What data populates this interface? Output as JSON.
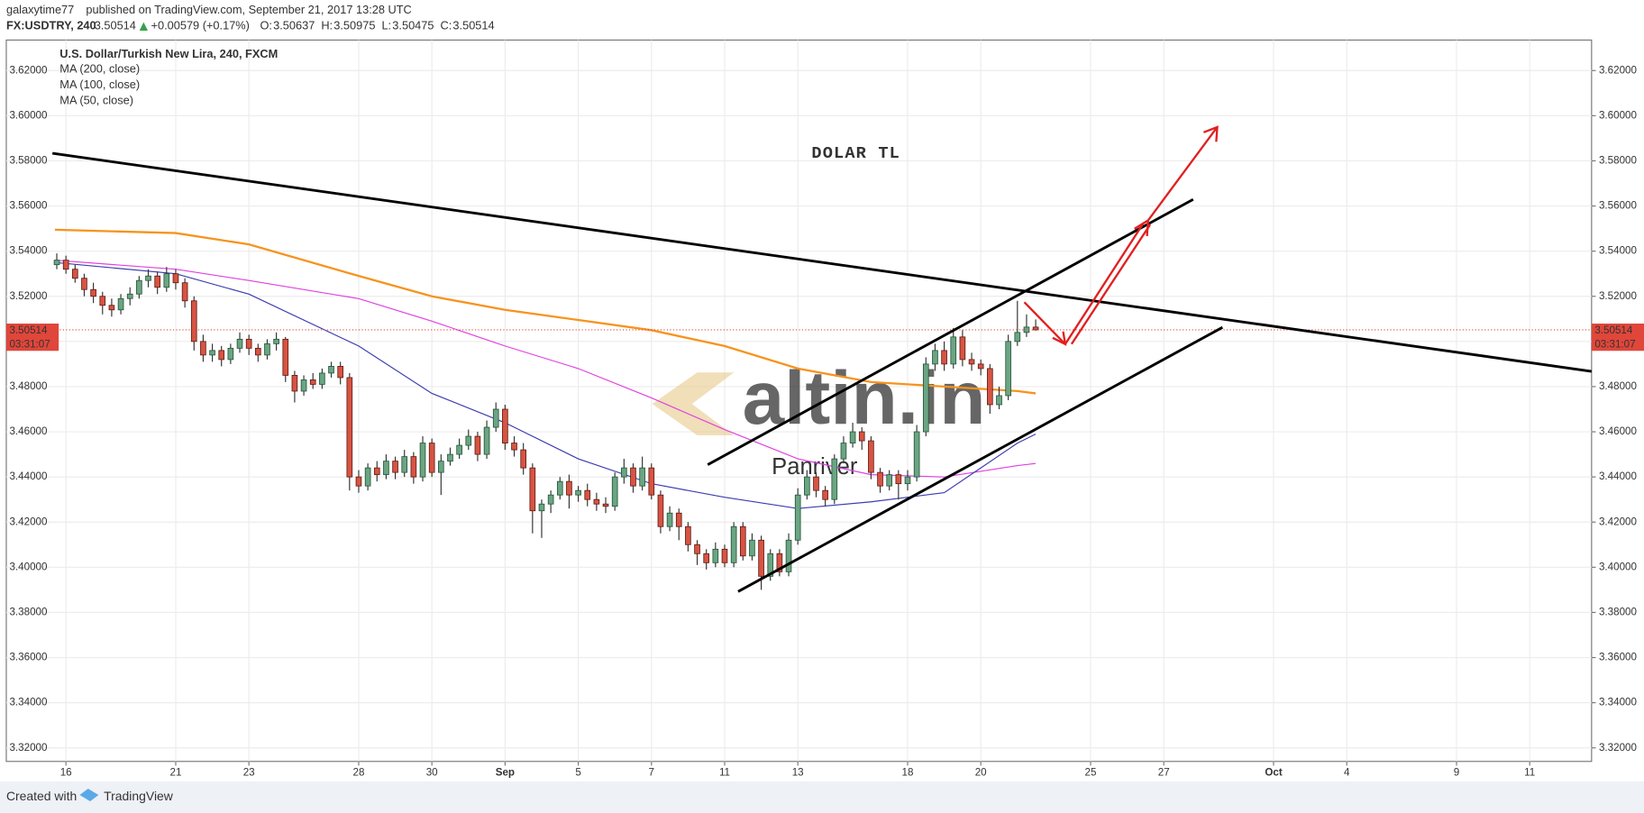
{
  "header": {
    "author": "galaxytime77",
    "published": "published on TradingView.com, September 21, 2017 13:28 UTC",
    "symbol": "FX:USDTRY, 240",
    "price": "3.50514",
    "change": "+0.00579 (+0.17%)",
    "quote": [
      {
        "label": "O:",
        "value": "3.50637"
      },
      {
        "label": "H:",
        "value": "3.50975"
      },
      {
        "label": "L:",
        "value": "3.50475"
      },
      {
        "label": "C:",
        "value": "3.50514"
      }
    ]
  },
  "chart_data": {
    "type": "candlestick",
    "title": "U.S. Dollar/Turkish New Lira, 240, FXCM",
    "annotation": "DOLAR TL",
    "watermark": "altin.in",
    "watermark2": "Panriver",
    "xlim": [
      -1.63,
      41.69
    ],
    "xticks": [
      {
        "value": 0,
        "label": "16"
      },
      {
        "value": 3,
        "label": "21"
      },
      {
        "value": 5,
        "label": "23"
      },
      {
        "value": 8,
        "label": "28"
      },
      {
        "value": 10,
        "label": "30"
      },
      {
        "value": 12,
        "label": "Sep"
      },
      {
        "value": 14,
        "label": "5"
      },
      {
        "value": 16,
        "label": "7"
      },
      {
        "value": 18,
        "label": "11"
      },
      {
        "value": 20,
        "label": "13"
      },
      {
        "value": 23,
        "label": "18"
      },
      {
        "value": 25,
        "label": "20"
      },
      {
        "value": 28,
        "label": "25"
      },
      {
        "value": 30,
        "label": "27"
      },
      {
        "value": 33,
        "label": "Oct"
      },
      {
        "value": 35,
        "label": "4"
      },
      {
        "value": 38,
        "label": "9"
      },
      {
        "value": 40,
        "label": "11"
      }
    ],
    "ylim": [
      3.314,
      3.6335
    ],
    "yticks": [
      {
        "value": 3.32,
        "label": "3.32000"
      },
      {
        "value": 3.34,
        "label": "3.34000"
      },
      {
        "value": 3.36,
        "label": "3.36000"
      },
      {
        "value": 3.38,
        "label": "3.38000"
      },
      {
        "value": 3.4,
        "label": "3.40000"
      },
      {
        "value": 3.42,
        "label": "3.42000"
      },
      {
        "value": 3.44,
        "label": "3.44000"
      },
      {
        "value": 3.46,
        "label": "3.46000"
      },
      {
        "value": 3.48,
        "label": "3.48000"
      },
      {
        "value": 3.5,
        "label": "3.50000"
      },
      {
        "value": 3.52,
        "label": "3.52000"
      },
      {
        "value": 3.54,
        "label": "3.54000"
      },
      {
        "value": 3.56,
        "label": "3.56000"
      },
      {
        "value": 3.58,
        "label": "3.58000"
      },
      {
        "value": 3.6,
        "label": "3.60000"
      },
      {
        "value": 3.62,
        "label": "3.62000"
      }
    ],
    "grid": true,
    "last_price": 3.50514,
    "countdown": "03:31:07",
    "up_color": "#6ba583",
    "down_color": "#d75442",
    "last_color": "#e0463a",
    "candles": {
      "x": [
        -0.25,
        0,
        0.25,
        0.5,
        0.75,
        1,
        1.25,
        1.5,
        1.75,
        2,
        2.25,
        2.5,
        2.75,
        3,
        3.25,
        3.5,
        3.75,
        4,
        4.25,
        4.5,
        4.75,
        5,
        5.25,
        5.5,
        5.75,
        6,
        6.25,
        6.5,
        6.75,
        7,
        7.25,
        7.5,
        7.75,
        8,
        8.25,
        8.5,
        8.75,
        9,
        9.25,
        9.5,
        9.75,
        10,
        10.25,
        10.5,
        10.75,
        11,
        11.25,
        11.5,
        11.75,
        12,
        12.25,
        12.5,
        12.75,
        13,
        13.25,
        13.5,
        13.75,
        14,
        14.25,
        14.5,
        14.75,
        15,
        15.25,
        15.5,
        15.75,
        16,
        16.25,
        16.5,
        16.75,
        17,
        17.25,
        17.5,
        17.75,
        18,
        18.25,
        18.5,
        18.75,
        19,
        19.25,
        19.5,
        19.75,
        20,
        20.25,
        20.5,
        20.75,
        21,
        21.25,
        21.5,
        21.75,
        22,
        22.25,
        22.5,
        22.75,
        23,
        23.25,
        23.5,
        23.75,
        24,
        24.25,
        24.5,
        24.75,
        25,
        25.25,
        25.5,
        25.75,
        26,
        26.25,
        26.5
      ],
      "ohlc": [
        [
          3.534,
          3.539,
          3.532,
          3.536
        ],
        [
          3.536,
          3.538,
          3.53,
          3.532
        ],
        [
          3.532,
          3.534,
          3.526,
          3.528
        ],
        [
          3.528,
          3.53,
          3.52,
          3.523
        ],
        [
          3.523,
          3.526,
          3.517,
          3.52
        ],
        [
          3.52,
          3.522,
          3.512,
          3.516
        ],
        [
          3.516,
          3.519,
          3.511,
          3.514
        ],
        [
          3.514,
          3.521,
          3.512,
          3.519
        ],
        [
          3.519,
          3.524,
          3.516,
          3.521
        ],
        [
          3.521,
          3.529,
          3.519,
          3.527
        ],
        [
          3.527,
          3.532,
          3.524,
          3.529
        ],
        [
          3.529,
          3.531,
          3.521,
          3.524
        ],
        [
          3.524,
          3.533,
          3.522,
          3.53
        ],
        [
          3.53,
          3.532,
          3.523,
          3.526
        ],
        [
          3.526,
          3.528,
          3.515,
          3.518
        ],
        [
          3.518,
          3.52,
          3.496,
          3.5
        ],
        [
          3.5,
          3.503,
          3.491,
          3.494
        ],
        [
          3.494,
          3.499,
          3.491,
          3.496
        ],
        [
          3.496,
          3.498,
          3.489,
          3.492
        ],
        [
          3.492,
          3.499,
          3.49,
          3.497
        ],
        [
          3.497,
          3.504,
          3.495,
          3.501
        ],
        [
          3.501,
          3.503,
          3.494,
          3.497
        ],
        [
          3.497,
          3.499,
          3.491,
          3.494
        ],
        [
          3.494,
          3.501,
          3.492,
          3.499
        ],
        [
          3.499,
          3.504,
          3.496,
          3.501
        ],
        [
          3.501,
          3.502,
          3.482,
          3.485
        ],
        [
          3.485,
          3.487,
          3.473,
          3.478
        ],
        [
          3.478,
          3.485,
          3.476,
          3.483
        ],
        [
          3.483,
          3.486,
          3.479,
          3.481
        ],
        [
          3.481,
          3.488,
          3.479,
          3.486
        ],
        [
          3.486,
          3.491,
          3.484,
          3.489
        ],
        [
          3.489,
          3.491,
          3.481,
          3.484
        ],
        [
          3.484,
          3.486,
          3.434,
          3.44
        ],
        [
          3.44,
          3.443,
          3.433,
          3.436
        ],
        [
          3.436,
          3.446,
          3.434,
          3.444
        ],
        [
          3.444,
          3.447,
          3.438,
          3.441
        ],
        [
          3.441,
          3.45,
          3.439,
          3.447
        ],
        [
          3.447,
          3.449,
          3.439,
          3.442
        ],
        [
          3.442,
          3.452,
          3.44,
          3.449
        ],
        [
          3.449,
          3.451,
          3.437,
          3.44
        ],
        [
          3.44,
          3.458,
          3.438,
          3.455
        ],
        [
          3.455,
          3.457,
          3.44,
          3.442
        ],
        [
          3.442,
          3.45,
          3.432,
          3.447
        ],
        [
          3.447,
          3.453,
          3.445,
          3.45
        ],
        [
          3.45,
          3.457,
          3.448,
          3.454
        ],
        [
          3.454,
          3.461,
          3.452,
          3.458
        ],
        [
          3.458,
          3.46,
          3.447,
          3.45
        ],
        [
          3.45,
          3.465,
          3.448,
          3.462
        ],
        [
          3.462,
          3.473,
          3.46,
          3.47
        ],
        [
          3.47,
          3.472,
          3.452,
          3.455
        ],
        [
          3.455,
          3.458,
          3.449,
          3.452
        ],
        [
          3.452,
          3.455,
          3.441,
          3.444
        ],
        [
          3.444,
          3.446,
          3.415,
          3.425
        ],
        [
          3.425,
          3.43,
          3.413,
          3.428
        ],
        [
          3.428,
          3.434,
          3.424,
          3.432
        ],
        [
          3.432,
          3.44,
          3.43,
          3.438
        ],
        [
          3.438,
          3.441,
          3.426,
          3.432
        ],
        [
          3.432,
          3.436,
          3.429,
          3.434
        ],
        [
          3.434,
          3.437,
          3.427,
          3.43
        ],
        [
          3.43,
          3.433,
          3.425,
          3.428
        ],
        [
          3.428,
          3.431,
          3.424,
          3.427
        ],
        [
          3.427,
          3.442,
          3.425,
          3.44
        ],
        [
          3.44,
          3.448,
          3.437,
          3.444
        ],
        [
          3.444,
          3.446,
          3.433,
          3.436
        ],
        [
          3.436,
          3.449,
          3.434,
          3.444
        ],
        [
          3.444,
          3.446,
          3.43,
          3.432
        ],
        [
          3.432,
          3.434,
          3.415,
          3.418
        ],
        [
          3.418,
          3.427,
          3.416,
          3.424
        ],
        [
          3.424,
          3.426,
          3.412,
          3.418
        ],
        [
          3.418,
          3.42,
          3.407,
          3.41
        ],
        [
          3.41,
          3.412,
          3.401,
          3.406
        ],
        [
          3.406,
          3.408,
          3.399,
          3.402
        ],
        [
          3.402,
          3.411,
          3.4,
          3.408
        ],
        [
          3.408,
          3.41,
          3.4,
          3.402
        ],
        [
          3.402,
          3.42,
          3.4,
          3.418
        ],
        [
          3.418,
          3.42,
          3.403,
          3.405
        ],
        [
          3.405,
          3.415,
          3.403,
          3.412
        ],
        [
          3.412,
          3.414,
          3.39,
          3.396
        ],
        [
          3.396,
          3.408,
          3.394,
          3.406
        ],
        [
          3.406,
          3.408,
          3.396,
          3.398
        ],
        [
          3.398,
          3.415,
          3.396,
          3.412
        ],
        [
          3.412,
          3.435,
          3.41,
          3.432
        ],
        [
          3.432,
          3.443,
          3.43,
          3.44
        ],
        [
          3.44,
          3.442,
          3.431,
          3.434
        ],
        [
          3.434,
          3.436,
          3.427,
          3.43
        ],
        [
          3.43,
          3.45,
          3.428,
          3.448
        ],
        [
          3.448,
          3.458,
          3.446,
          3.455
        ],
        [
          3.455,
          3.464,
          3.453,
          3.46
        ],
        [
          3.46,
          3.462,
          3.452,
          3.456
        ],
        [
          3.456,
          3.458,
          3.439,
          3.442
        ],
        [
          3.442,
          3.444,
          3.433,
          3.436
        ],
        [
          3.436,
          3.443,
          3.434,
          3.441
        ],
        [
          3.441,
          3.443,
          3.43,
          3.437
        ],
        [
          3.437,
          3.443,
          3.434,
          3.44
        ],
        [
          3.44,
          3.463,
          3.438,
          3.46
        ],
        [
          3.46,
          3.493,
          3.458,
          3.49
        ],
        [
          3.49,
          3.499,
          3.487,
          3.496
        ],
        [
          3.496,
          3.5,
          3.487,
          3.49
        ],
        [
          3.49,
          3.506,
          3.488,
          3.502
        ],
        [
          3.502,
          3.505,
          3.489,
          3.492
        ],
        [
          3.492,
          3.495,
          3.487,
          3.49
        ],
        [
          3.49,
          3.492,
          3.485,
          3.488
        ],
        [
          3.488,
          3.49,
          3.468,
          3.472
        ],
        [
          3.472,
          3.48,
          3.47,
          3.476
        ],
        [
          3.476,
          3.503,
          3.474,
          3.5
        ],
        [
          3.5,
          3.518,
          3.498,
          3.504
        ],
        [
          3.504,
          3.512,
          3.502,
          3.50637
        ],
        [
          3.50637,
          3.50975,
          3.50475,
          3.50514
        ]
      ]
    },
    "series": [
      {
        "name": "MA (200, close)",
        "color": "#f7931e",
        "x": [
          -0.3,
          3,
          5,
          8,
          10,
          12,
          14,
          16,
          18,
          20,
          22,
          24,
          26,
          26.5
        ],
        "values": [
          3.5495,
          3.548,
          3.543,
          3.529,
          3.52,
          3.514,
          3.5095,
          3.505,
          3.498,
          3.488,
          3.482,
          3.48,
          3.478,
          3.477
        ]
      },
      {
        "name": "MA (100, close)",
        "color": "#e040e0",
        "x": [
          -0.3,
          3,
          5,
          8,
          10,
          12,
          14,
          16,
          18,
          20,
          22,
          24,
          26,
          26.5
        ],
        "values": [
          3.536,
          3.532,
          3.527,
          3.519,
          3.509,
          3.498,
          3.488,
          3.475,
          3.461,
          3.448,
          3.441,
          3.44,
          3.445,
          3.446
        ]
      },
      {
        "name": "MA (50, close)",
        "color": "#3c3cb0",
        "x": [
          -0.3,
          3,
          5,
          8,
          10,
          12,
          14,
          16,
          18,
          20,
          22,
          24,
          25,
          26,
          26.5
        ],
        "values": [
          3.535,
          3.53,
          3.521,
          3.498,
          3.477,
          3.464,
          3.448,
          3.437,
          3.431,
          3.426,
          3.429,
          3.433,
          3.444,
          3.455,
          3.459
        ]
      }
    ]
  },
  "footer": {
    "created": "Created with",
    "brand": "TradingView"
  }
}
